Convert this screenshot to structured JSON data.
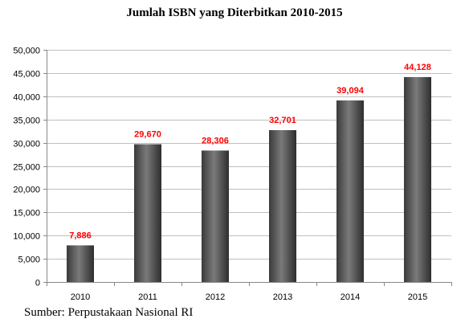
{
  "chart_data": {
    "type": "bar",
    "title": "Jumlah ISBN yang Diterbitkan 2010-2015",
    "categories": [
      "2010",
      "2011",
      "2012",
      "2013",
      "2014",
      "2015"
    ],
    "values": [
      7886,
      29670,
      28306,
      32701,
      39094,
      44128
    ],
    "data_labels": [
      "7,886",
      "29,670",
      "28,306",
      "32,701",
      "39,094",
      "44,128"
    ],
    "ylim": [
      0,
      50000
    ],
    "yticks": [
      0,
      5000,
      10000,
      15000,
      20000,
      25000,
      30000,
      35000,
      40000,
      45000,
      50000
    ],
    "ytick_labels": [
      "0",
      "5,000",
      "10,000",
      "15,000",
      "20,000",
      "25,000",
      "30,000",
      "35,000",
      "40,000",
      "45,000",
      "50,000"
    ],
    "grid": true,
    "legend": "none",
    "colors": {
      "bar": "#555555",
      "data_label": "#ff0000",
      "grid": "#bfbfbf"
    }
  },
  "source": "Sumber: Perpustakaan Nasional RI"
}
